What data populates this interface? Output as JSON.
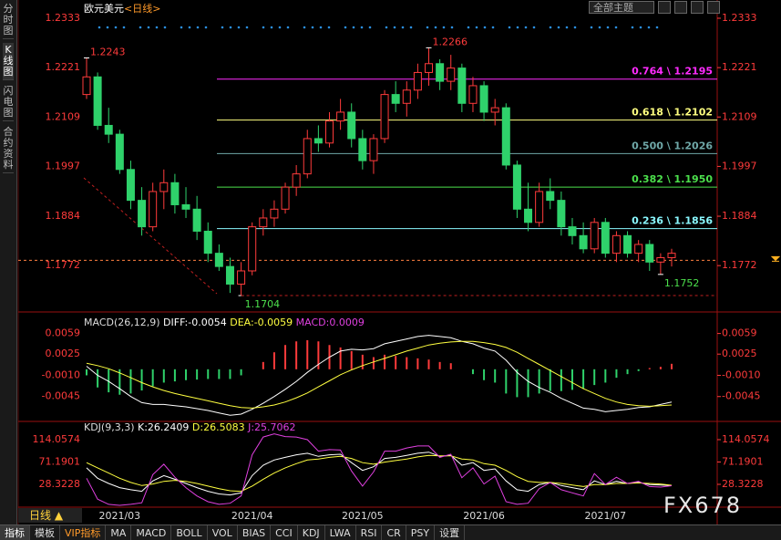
{
  "ui": {
    "sidebar_tabs": [
      "分时图",
      "K线图",
      "闪电图",
      "合约资料"
    ],
    "theme_select": "全部主题",
    "period_button": "日线 ▲",
    "bottom_tabs": [
      "指标",
      "模板",
      "VIP指标",
      "MA",
      "MACD",
      "BOLL",
      "VOL",
      "BIAS",
      "CCI",
      "KDJ",
      "LWA",
      "RSI",
      "CR",
      "PSY",
      "设置"
    ],
    "watermark": "FX678"
  },
  "chart_data": [
    {
      "type": "candlestick",
      "title": "欧元美元",
      "period": "<日线>",
      "categories": [
        null,
        null,
        null,
        "2021/03",
        null,
        null,
        null,
        null,
        null,
        null,
        null,
        null,
        null,
        null,
        null,
        "2021/04",
        null,
        null,
        null,
        null,
        null,
        null,
        null,
        null,
        null,
        "2021/05",
        null,
        null,
        null,
        null,
        null,
        null,
        null,
        null,
        null,
        null,
        "2021/06",
        null,
        null,
        null,
        null,
        null,
        null,
        null,
        null,
        null,
        null,
        "2021/07",
        null,
        null,
        null,
        null,
        null,
        null
      ],
      "open": [
        1.216,
        1.22,
        1.209,
        1.207,
        1.199,
        1.192,
        1.186,
        1.194,
        1.196,
        1.191,
        1.19,
        1.185,
        1.18,
        1.177,
        1.173,
        1.176,
        1.186,
        1.188,
        1.19,
        1.195,
        1.198,
        1.206,
        1.205,
        1.21,
        1.212,
        1.206,
        1.201,
        1.206,
        1.216,
        1.214,
        1.217,
        1.221,
        1.223,
        1.219,
        1.222,
        1.214,
        1.218,
        1.212,
        1.213,
        1.2,
        1.19,
        1.187,
        1.194,
        1.192,
        1.186,
        1.184,
        1.181,
        1.187,
        1.18,
        1.184,
        1.18,
        1.182,
        1.178,
        1.179
      ],
      "high": [
        1.2243,
        1.221,
        1.213,
        1.208,
        1.201,
        1.195,
        1.196,
        1.199,
        1.198,
        1.195,
        1.193,
        1.187,
        1.182,
        1.179,
        1.178,
        1.187,
        1.19,
        1.192,
        1.196,
        1.2,
        1.208,
        1.209,
        1.212,
        1.215,
        1.214,
        1.208,
        1.207,
        1.217,
        1.219,
        1.219,
        1.223,
        1.2266,
        1.224,
        1.225,
        1.223,
        1.22,
        1.219,
        1.215,
        1.214,
        1.201,
        1.196,
        1.196,
        1.197,
        1.194,
        1.188,
        1.187,
        1.188,
        1.188,
        1.185,
        1.185,
        1.183,
        1.183,
        1.18,
        1.181
      ],
      "low": [
        1.215,
        1.208,
        1.205,
        1.198,
        1.19,
        1.184,
        1.185,
        1.19,
        1.189,
        1.188,
        1.183,
        1.178,
        1.176,
        1.171,
        1.1704,
        1.175,
        1.184,
        1.186,
        1.189,
        1.193,
        1.197,
        1.203,
        1.204,
        1.208,
        1.204,
        1.199,
        1.198,
        1.205,
        1.212,
        1.211,
        1.215,
        1.218,
        1.217,
        1.217,
        1.212,
        1.212,
        1.21,
        1.209,
        1.199,
        1.188,
        1.185,
        1.186,
        1.19,
        1.184,
        1.182,
        1.18,
        1.18,
        1.179,
        1.178,
        1.179,
        1.178,
        1.176,
        1.1752,
        1.177
      ],
      "close": [
        1.22,
        1.209,
        1.207,
        1.199,
        1.192,
        1.186,
        1.194,
        1.196,
        1.191,
        1.19,
        1.185,
        1.18,
        1.177,
        1.173,
        1.176,
        1.186,
        1.188,
        1.19,
        1.195,
        1.198,
        1.206,
        1.205,
        1.21,
        1.212,
        1.206,
        1.201,
        1.206,
        1.216,
        1.214,
        1.217,
        1.221,
        1.223,
        1.219,
        1.222,
        1.214,
        1.218,
        1.212,
        1.213,
        1.2,
        1.19,
        1.187,
        1.194,
        1.192,
        1.186,
        1.184,
        1.181,
        1.187,
        1.18,
        1.184,
        1.18,
        1.182,
        1.178,
        1.179,
        1.18
      ],
      "up_color": "#ff3b3b",
      "down_color": "#2fd26b",
      "ylim": [
        1.1671,
        1.2364
      ],
      "yticks": [
        1.2333,
        1.2221,
        1.2109,
        1.1997,
        1.1884,
        1.1772
      ],
      "fib_levels": [
        {
          "label": "0.764 \\ 1.2195",
          "value": 1.2195,
          "color": "#ff2bff"
        },
        {
          "label": "0.618 \\ 1.2102",
          "value": 1.2102,
          "color": "#ffff80"
        },
        {
          "label": "0.500 \\ 1.2026",
          "value": 1.2026,
          "color": "#6fa8a8"
        },
        {
          "label": "0.382 \\ 1.1950",
          "value": 1.195,
          "color": "#4ce04c"
        },
        {
          "label": "0.236 \\ 1.1856",
          "value": 1.1856,
          "color": "#8af8ff"
        }
      ],
      "annotations": [
        1.2243,
        1.2266,
        1.1704,
        1.1752
      ],
      "last_price": 1.1784
    },
    {
      "type": "macd",
      "header": [
        "MACD(26,12,9)",
        "DIFF:-0.0054",
        "DEA:-0.0059",
        "MACD:0.0009"
      ],
      "ylim": [
        -0.0083,
        0.009
      ],
      "yticks": [
        0.0059,
        0.0025,
        {
          "value": -0.001,
          "label": "-0.0010"
        },
        -0.0045
      ],
      "histogram": {
        "up_color": "#ff3b3b",
        "down_color": "#2fd26b",
        "values": [
          -0.001,
          -0.003,
          -0.0038,
          -0.0042,
          -0.004,
          -0.0035,
          -0.0028,
          -0.0022,
          -0.002,
          -0.0018,
          -0.0017,
          -0.0016,
          -0.0016,
          -0.0016,
          -0.001,
          0.0,
          0.0012,
          0.0028,
          0.004,
          0.0046,
          0.0048,
          0.0046,
          0.004,
          0.0036,
          0.003,
          0.0024,
          0.002,
          0.0024,
          0.0022,
          0.002,
          0.0018,
          0.0016,
          0.0012,
          0.001,
          0.0,
          -0.0008,
          -0.0018,
          -0.0022,
          -0.004,
          -0.0046,
          -0.0046,
          -0.004,
          -0.0036,
          -0.0036,
          -0.0034,
          -0.0032,
          -0.0026,
          -0.0022,
          -0.0014,
          -0.0008,
          -0.0003,
          0.0002,
          0.0004,
          0.0009
        ]
      },
      "lines": [
        {
          "color": "#ffffff",
          "values": [
            0.0005,
            -0.001,
            -0.002,
            -0.0032,
            -0.0045,
            -0.0055,
            -0.0058,
            -0.0058,
            -0.006,
            -0.0062,
            -0.0065,
            -0.0068,
            -0.0072,
            -0.0076,
            -0.0074,
            -0.0066,
            -0.0056,
            -0.0045,
            -0.0033,
            -0.002,
            -0.0005,
            0.0008,
            0.002,
            0.003,
            0.0033,
            0.0032,
            0.0034,
            0.0042,
            0.0046,
            0.005,
            0.0054,
            0.0056,
            0.0054,
            0.0052,
            0.0046,
            0.0042,
            0.0035,
            0.003,
            0.0015,
            -0.0005,
            -0.002,
            -0.003,
            -0.0038,
            -0.0048,
            -0.0056,
            -0.0064,
            -0.0066,
            -0.007,
            -0.0068,
            -0.0066,
            -0.0063,
            -0.0062,
            -0.0058,
            -0.0054
          ]
        },
        {
          "color": "#ffff40",
          "values": [
            0.001,
            0.0006,
            0.0001,
            -0.0006,
            -0.0014,
            -0.0022,
            -0.0029,
            -0.0035,
            -0.004,
            -0.0044,
            -0.0048,
            -0.0052,
            -0.0056,
            -0.006,
            -0.0063,
            -0.0064,
            -0.0062,
            -0.0059,
            -0.0054,
            -0.0047,
            -0.0039,
            -0.0029,
            -0.0019,
            -0.0009,
            -0.0001,
            0.0006,
            0.0012,
            0.0018,
            0.0024,
            0.003,
            0.0035,
            0.004,
            0.0043,
            0.0045,
            0.0046,
            0.0046,
            0.0044,
            0.0041,
            0.0036,
            0.0028,
            0.0018,
            0.0008,
            -0.0002,
            -0.0012,
            -0.0022,
            -0.0032,
            -0.004,
            -0.0048,
            -0.0054,
            -0.0058,
            -0.006,
            -0.0061,
            -0.006,
            -0.0059
          ]
        }
      ]
    },
    {
      "type": "kdj",
      "header": [
        "KDJ(9,3,3)",
        "K:26.2409",
        "D:26.5083",
        "J:25.7062"
      ],
      "ylim": [
        -13.7,
        135
      ],
      "yticks": [
        114.0574,
        71.1901,
        28.3228
      ],
      "lines": [
        {
          "color": "#ffffff",
          "values": [
            60,
            40,
            30,
            22,
            18,
            15,
            35,
            45,
            38,
            30,
            22,
            15,
            10,
            8,
            12,
            45,
            65,
            75,
            80,
            85,
            88,
            82,
            85,
            86,
            70,
            55,
            62,
            78,
            80,
            84,
            88,
            90,
            82,
            84,
            65,
            70,
            55,
            58,
            35,
            18,
            15,
            28,
            32,
            26,
            22,
            18,
            35,
            28,
            34,
            30,
            32,
            28,
            27,
            26.2409
          ]
        },
        {
          "color": "#ffff40",
          "values": [
            70,
            60,
            50,
            40,
            32,
            26,
            29,
            34,
            36,
            34,
            30,
            25,
            20,
            16,
            15,
            25,
            38,
            50,
            60,
            68,
            75,
            77,
            80,
            82,
            78,
            70,
            67,
            71,
            74,
            77,
            81,
            84,
            83,
            83,
            77,
            75,
            68,
            65,
            55,
            43,
            34,
            32,
            32,
            30,
            27,
            24,
            28,
            28,
            30,
            30,
            31,
            30,
            29,
            26.5083
          ]
        },
        {
          "color": "#e040e0",
          "values": [
            40,
            0,
            -10,
            -12,
            -10,
            -7,
            47,
            67,
            42,
            22,
            6,
            -5,
            -10,
            -8,
            6,
            85,
            119,
            125,
            120,
            119,
            114,
            92,
            95,
            94,
            54,
            25,
            52,
            92,
            92,
            98,
            102,
            102,
            80,
            86,
            41,
            60,
            29,
            44,
            -5,
            -10,
            -8,
            20,
            32,
            18,
            12,
            6,
            49,
            28,
            42,
            30,
            34,
            24,
            23,
            25.7062
          ]
        }
      ]
    }
  ]
}
